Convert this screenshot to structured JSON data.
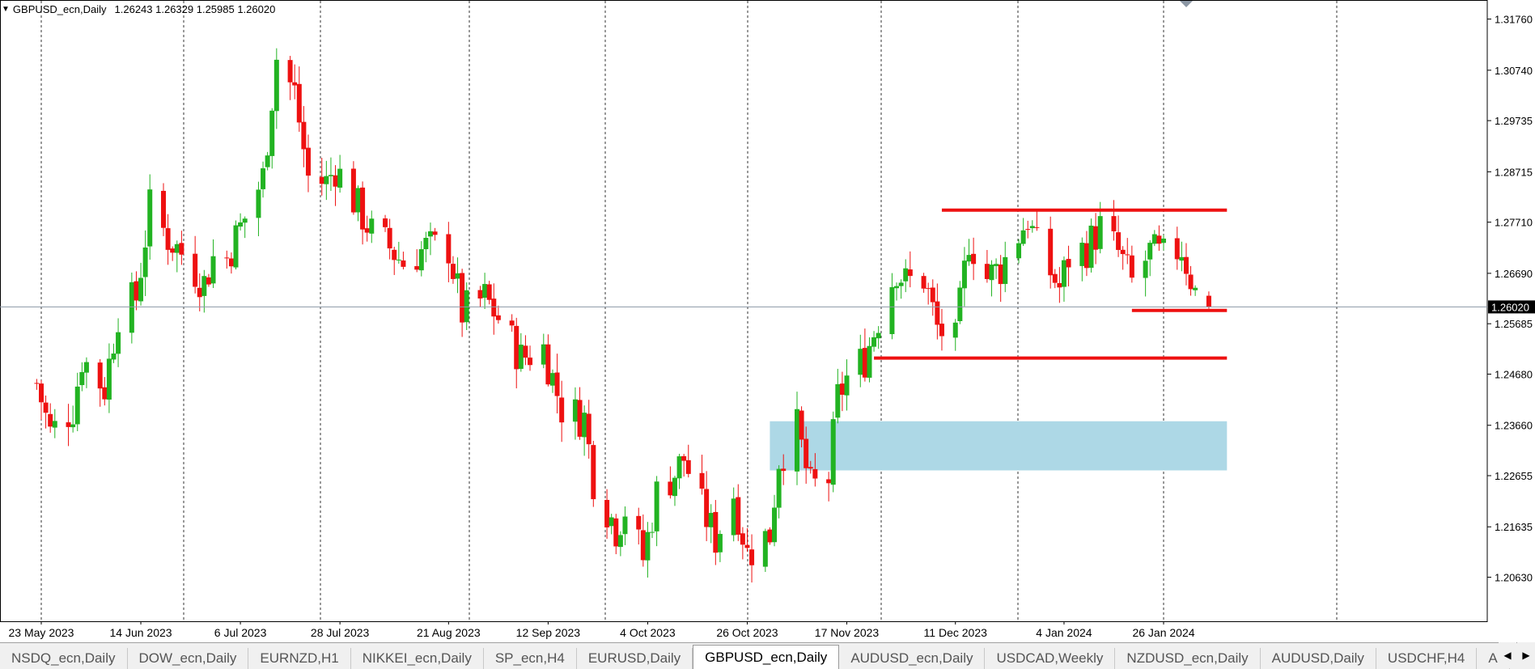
{
  "window": {
    "symbol_label": "GBPUSD_ecn,Daily",
    "ohlc": "1.26243 1.26329 1.25985 1.26020",
    "collapse_icon": "triangle-down-icon",
    "shift_marker_icon": "shift-marker-icon"
  },
  "chart_data": {
    "type": "candlestick",
    "symbol": "GBPUSD_ecn",
    "timeframe": "Daily",
    "ylim": [
      1.203,
      1.3185
    ],
    "price_labels": [
      "1.31760",
      "1.30740",
      "1.29735",
      "1.28715",
      "1.27710",
      "1.26690",
      "1.25685",
      "1.24680",
      "1.23660",
      "1.22655",
      "1.21635",
      "1.20630"
    ],
    "current_price": "1.26020",
    "date_labels": [
      "23 May 2023",
      "14 Jun 2023",
      "6 Jul 2023",
      "28 Jul 2023",
      "21 Aug 2023",
      "12 Sep 2023",
      "4 Oct 2023",
      "26 Oct 2023",
      "17 Nov 2023",
      "11 Dec 2023",
      "4 Jan 2024",
      "26 Jan 2024"
    ],
    "grid": "vertical dotted separators",
    "colors": {
      "bull": "#22b322",
      "bear": "#ee1111",
      "zone": "#add8e6",
      "level": "#ee1111",
      "current_line": "#8c97a4"
    },
    "horizontal_levels": [
      {
        "price": 1.2795,
        "from": "8 Dec 2023",
        "to": "9 Feb 2024"
      },
      {
        "price": 1.2595,
        "from": "19 Jan 2024",
        "to": "9 Feb 2024"
      },
      {
        "price": 1.25,
        "from": "23 Nov 2023",
        "to": "9 Feb 2024"
      }
    ],
    "zone": {
      "from": "31 Oct 2023",
      "to": "9 Feb 2024",
      "top": 1.2374,
      "bottom": 1.2276
    },
    "waypoints": [
      [
        "22 May 2023",
        1.245
      ],
      [
        "25 May 2023",
        1.235
      ],
      [
        "30 May 2023",
        1.24
      ],
      [
        "1 Jun 2023",
        1.25
      ],
      [
        "6 Jun 2023",
        1.244
      ],
      [
        "9 Jun 2023",
        1.259
      ],
      [
        "13 Jun 2023",
        1.262
      ],
      [
        "16 Jun 2023",
        1.28
      ],
      [
        "20 Jun 2023",
        1.274
      ],
      [
        "23 Jun 2023",
        1.271
      ],
      [
        "28 Jun 2023",
        1.265
      ],
      [
        "30 Jun 2023",
        1.27
      ],
      [
        "3 Jul 2023",
        1.27
      ],
      [
        "6 Jul 2023",
        1.276
      ],
      [
        "11 Jul 2023",
        1.286
      ],
      [
        "14 Jul 2023",
        1.31
      ],
      [
        "18 Jul 2023",
        1.303
      ],
      [
        "21 Jul 2023",
        1.286
      ],
      [
        "25 Jul 2023",
        1.285
      ],
      [
        "27 Jul 2023",
        1.288
      ],
      [
        "1 Aug 2023",
        1.28
      ],
      [
        "4 Aug 2023",
        1.275
      ],
      [
        "8 Aug 2023",
        1.272
      ],
      [
        "11 Aug 2023",
        1.269
      ],
      [
        "16 Aug 2023",
        1.272
      ],
      [
        "21 Aug 2023",
        1.272
      ],
      [
        "24 Aug 2023",
        1.259
      ],
      [
        "29 Aug 2023",
        1.262
      ],
      [
        "1 Sep 2023",
        1.258
      ],
      [
        "6 Sep 2023",
        1.25
      ],
      [
        "11 Sep 2023",
        1.252
      ],
      [
        "15 Sep 2023",
        1.24
      ],
      [
        "20 Sep 2023",
        1.238
      ],
      [
        "22 Sep 2023",
        1.226
      ],
      [
        "27 Sep 2023",
        1.216
      ],
      [
        "29 Sep 2023",
        1.22
      ],
      [
        "3 Oct 2023",
        1.21
      ],
      [
        "6 Oct 2023",
        1.223
      ],
      [
        "10 Oct 2023",
        1.227
      ],
      [
        "12 Oct 2023",
        1.23
      ],
      [
        "16 Oct 2023",
        1.22
      ],
      [
        "19 Oct 2023",
        1.214
      ],
      [
        "23 Oct 2023",
        1.223
      ],
      [
        "26 Oct 2023",
        1.211
      ],
      [
        "31 Oct 2023",
        1.215
      ],
      [
        "2 Nov 2023",
        1.23
      ],
      [
        "6 Nov 2023",
        1.236
      ],
      [
        "9 Nov 2023",
        1.224
      ],
      [
        "13 Nov 2023",
        1.226
      ],
      [
        "15 Nov 2023",
        1.242
      ],
      [
        "17 Nov 2023",
        1.246
      ],
      [
        "21 Nov 2023",
        1.25
      ],
      [
        "24 Nov 2023",
        1.258
      ],
      [
        "28 Nov 2023",
        1.268
      ],
      [
        "30 Nov 2023",
        1.265
      ],
      [
        "4 Dec 2023",
        1.266
      ],
      [
        "7 Dec 2023",
        1.256
      ],
      [
        "11 Dec 2023",
        1.253
      ],
      [
        "14 Dec 2023",
        1.274
      ],
      [
        "18 Dec 2023",
        1.266
      ],
      [
        "21 Dec 2023",
        1.268
      ],
      [
        "27 Dec 2023",
        1.278
      ],
      [
        "29 Dec 2023",
        1.272
      ],
      [
        "3 Jan 2024",
        1.264
      ],
      [
        "5 Jan 2024",
        1.27
      ],
      [
        "9 Jan 2024",
        1.272
      ],
      [
        "12 Jan 2024",
        1.276
      ],
      [
        "16 Jan 2024",
        1.271
      ],
      [
        "19 Jan 2024",
        1.265
      ],
      [
        "23 Jan 2024",
        1.271
      ],
      [
        "26 Jan 2024",
        1.27
      ],
      [
        "30 Jan 2024",
        1.272
      ],
      [
        "2 Feb 2024",
        1.263
      ],
      [
        "5 Feb 2024",
        1.26243
      ]
    ],
    "last_candle": {
      "date": "5 Feb 2024",
      "open": 1.26243,
      "high": 1.26329,
      "low": 1.25985,
      "close": 1.2602
    }
  },
  "tabs": [
    {
      "label": "NSDQ_ecn,Daily",
      "active": false
    },
    {
      "label": "DOW_ecn,Daily",
      "active": false
    },
    {
      "label": "EURNZD,H1",
      "active": false
    },
    {
      "label": "NIKKEI_ecn,Daily",
      "active": false
    },
    {
      "label": "SP_ecn,H4",
      "active": false
    },
    {
      "label": "EURUSD,Daily",
      "active": false
    },
    {
      "label": "GBPUSD_ecn,Daily",
      "active": true
    },
    {
      "label": "AUDUSD_ecn,Daily",
      "active": false
    },
    {
      "label": "USDCAD,Weekly",
      "active": false
    },
    {
      "label": "NZDUSD_ecn,Daily",
      "active": false
    },
    {
      "label": "AUDUSD,Daily",
      "active": false
    },
    {
      "label": "USDCHF,H4",
      "active": false
    },
    {
      "label": "A",
      "active": false
    }
  ],
  "tab_nav": {
    "prev_icon": "chevron-left-icon",
    "next_icon": "chevron-right-icon"
  }
}
